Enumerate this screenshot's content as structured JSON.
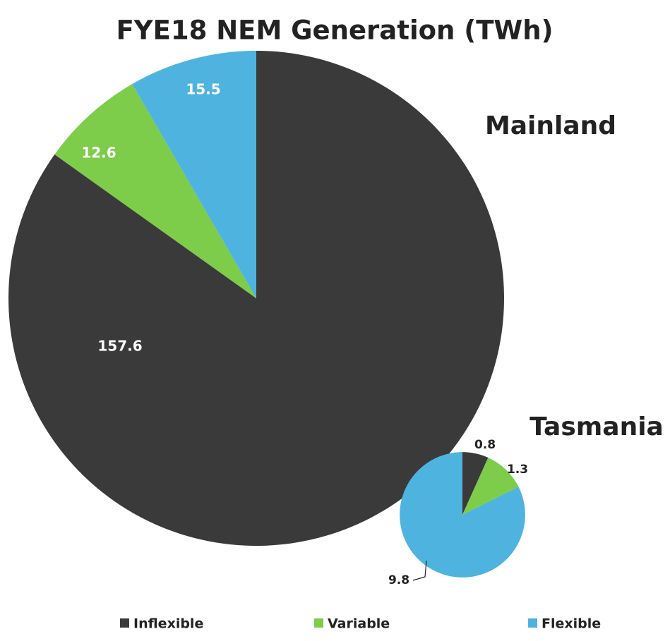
{
  "chart_data": {
    "type": "pie",
    "title": "FYE18 NEM Generation (TWh)",
    "categories": [
      "Inflexible",
      "Variable",
      "Flexible"
    ],
    "colors": [
      "#3a3a3a",
      "#7dcc4a",
      "#4fb3e0"
    ],
    "pies": [
      {
        "name": "Mainland",
        "values": [
          157.6,
          12.6,
          15.5
        ]
      },
      {
        "name": "Tasmania",
        "values": [
          0.8,
          1.3,
          9.8
        ]
      }
    ]
  }
}
